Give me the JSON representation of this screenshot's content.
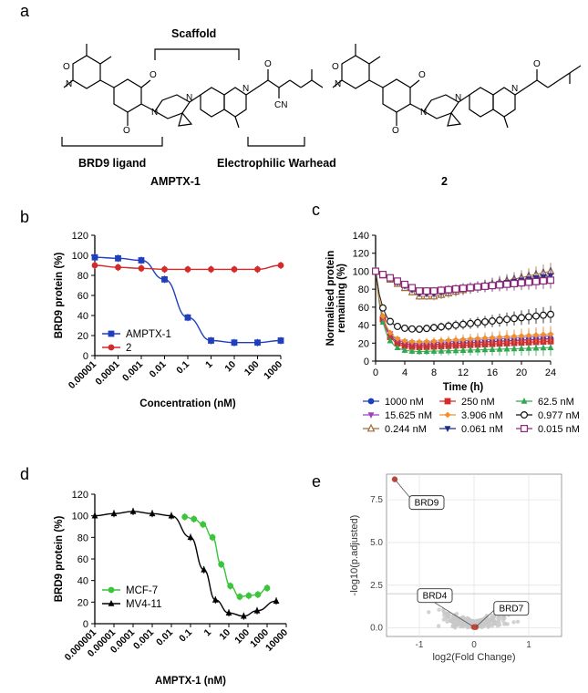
{
  "panel_letters": {
    "a": "a",
    "b": "b",
    "c": "c",
    "d": "d",
    "e": "e"
  },
  "panel_a": {
    "scaffold_label": "Scaffold",
    "ligand_label": "BRD9 ligand",
    "warhead_label": "Electrophilic Warhead",
    "compound1_name": "AMPTX-1",
    "compound2_name": "2",
    "atoms": {
      "O": "O",
      "N": "N",
      "CN": "CN"
    }
  },
  "chart_data": [
    {
      "panel": "b",
      "type": "line",
      "xscale": "log",
      "xlabel": "Concentration (nM)",
      "ylabel": "BRD9 protein (%)",
      "ylim": [
        0,
        120
      ],
      "yticks": [
        "0",
        "20",
        "40",
        "60",
        "80",
        "100",
        "120"
      ],
      "xticks": [
        "0.00001",
        "0.0001",
        "0.001",
        "0.01",
        "0.1",
        "1",
        "10",
        "100",
        "1000"
      ],
      "legend_position": "middle-left",
      "series": [
        {
          "name": "AMPTX-1",
          "color": "#1f3fbf",
          "marker": "square",
          "x": [
            1e-05,
            0.0001,
            0.001,
            0.01,
            0.1,
            1,
            10,
            100,
            1000
          ],
          "y": [
            98,
            97,
            95,
            76,
            38,
            15,
            13,
            13,
            15
          ]
        },
        {
          "name": "2",
          "color": "#d42a2a",
          "marker": "circle",
          "x": [
            1e-05,
            0.0001,
            0.001,
            0.01,
            0.1,
            1,
            10,
            100,
            1000
          ],
          "y": [
            90,
            88,
            87,
            86,
            86,
            86,
            86,
            86,
            90
          ]
        }
      ]
    },
    {
      "panel": "c",
      "type": "line",
      "xlabel": "Time (h)",
      "ylabel": "Normalised protein remaining (%)",
      "ylabel_lines": [
        "Normalised protein",
        "remaining (%)"
      ],
      "xlim": [
        0,
        24
      ],
      "ylim": [
        0,
        140
      ],
      "xticks": [
        "0",
        "4",
        "8",
        "12",
        "16",
        "20",
        "24"
      ],
      "yticks": [
        "0",
        "20",
        "40",
        "60",
        "80",
        "100",
        "120",
        "140"
      ],
      "legend_position": "bottom",
      "series": [
        {
          "name": "1000 nM",
          "color": "#1a3fbf",
          "marker": "circle",
          "y_end": 25
        },
        {
          "name": "250 nM",
          "color": "#d42a2a",
          "marker": "square",
          "y_end": 22
        },
        {
          "name": "62.5 nM",
          "color": "#2fa84f",
          "marker": "triangle",
          "y_end": 15
        },
        {
          "name": "15.625 nM",
          "color": "#a040c0",
          "marker": "triangle-down",
          "y_end": 28
        },
        {
          "name": "3.906 nM",
          "color": "#f0902a",
          "marker": "diamond",
          "y_end": 30
        },
        {
          "name": "0.977 nM",
          "color": "#111111",
          "marker": "circle-open",
          "y_end": 52
        },
        {
          "name": "0.244 nM",
          "color": "#a06a3a",
          "marker": "triangle-open",
          "y_end": 100
        },
        {
          "name": "0.061 nM",
          "color": "#1a2a8f",
          "marker": "triangle-down",
          "y_end": 95
        },
        {
          "name": "0.015 nM",
          "color": "#8a2a7a",
          "marker": "square-open",
          "y_end": 90
        }
      ]
    },
    {
      "panel": "d",
      "type": "line",
      "xscale": "log",
      "xlabel": "AMPTX-1 (nM)",
      "ylabel": "BRD9 protein (%)",
      "ylim": [
        0,
        120
      ],
      "yticks": [
        "0",
        "20",
        "40",
        "60",
        "80",
        "100",
        "120"
      ],
      "xticks": [
        "0.000001",
        "0.00001",
        "0.0001",
        "0.001",
        "0.01",
        "0.1",
        "1",
        "10",
        "100",
        "1000",
        "10000"
      ],
      "legend_position": "bottom-left",
      "series": [
        {
          "name": "MCF-7",
          "color": "#3cc43c",
          "marker": "circle",
          "x": [
            0.05,
            0.15,
            0.45,
            1.4,
            4,
            12,
            37,
            110,
            330,
            1000
          ],
          "y": [
            99,
            97,
            92,
            80,
            55,
            35,
            25,
            26,
            27,
            33
          ]
        },
        {
          "name": "MV4-11",
          "color": "#000000",
          "marker": "triangle",
          "x": [
            1e-06,
            1e-05,
            0.0001,
            0.001,
            0.01,
            0.1,
            0.5,
            2,
            10,
            60,
            300,
            3000
          ],
          "y": [
            100,
            102,
            104,
            102,
            100,
            80,
            50,
            22,
            10,
            7,
            12,
            21
          ]
        }
      ]
    },
    {
      "panel": "e",
      "type": "scatter",
      "xlabel": "log2(Fold Change)",
      "ylabel": "-log10(p.adjusted)",
      "xlim": [
        -1.6,
        1.6
      ],
      "ylim": [
        -0.5,
        9
      ],
      "xticks": [
        "-1",
        "0",
        "1"
      ],
      "yticks": [
        "0.0",
        "2.5",
        "5.0",
        "7.5"
      ],
      "threshold_y": 2,
      "labelled_points": [
        {
          "name": "BRD9",
          "x": -1.45,
          "y": 8.7
        },
        {
          "name": "BRD4",
          "x": 0.0,
          "y": 0.05
        },
        {
          "name": "BRD7",
          "x": 0.03,
          "y": 0.05
        }
      ]
    }
  ]
}
